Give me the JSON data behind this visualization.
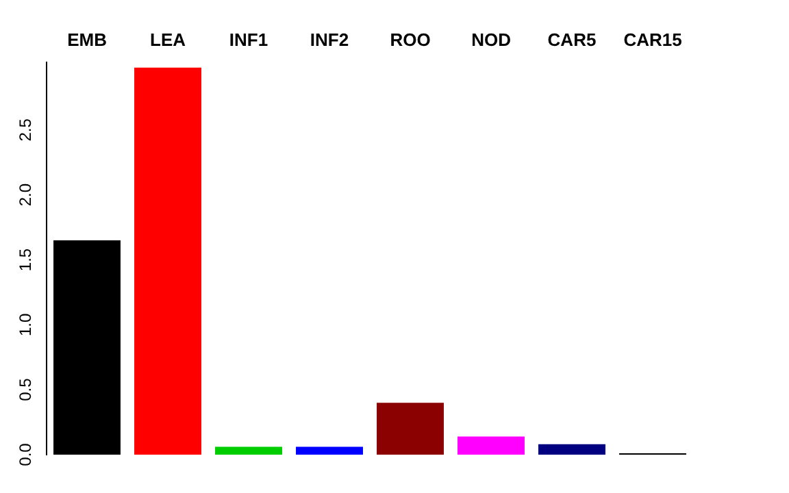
{
  "chart_data": {
    "type": "bar",
    "categories": [
      "EMB",
      "LEA",
      "INF1",
      "INF2",
      "ROO",
      "NOD",
      "CAR5",
      "CAR15"
    ],
    "values": [
      1.65,
      2.98,
      0.06,
      0.06,
      0.4,
      0.14,
      0.08,
      0.01
    ],
    "colors": [
      "#000000",
      "#ff0000",
      "#00cd00",
      "#0000ff",
      "#8b0000",
      "#ff00ff",
      "#000080",
      "#000000"
    ],
    "ylim": [
      0,
      3.02
    ],
    "yticks": [
      {
        "value": 0,
        "label": "0.0"
      },
      {
        "value": 0.5,
        "label": "0.5"
      },
      {
        "value": 1,
        "label": "1.0"
      },
      {
        "value": 1.5,
        "label": "1.5"
      },
      {
        "value": 2,
        "label": "2.0"
      },
      {
        "value": 2.5,
        "label": "2.5"
      }
    ],
    "grid": false,
    "legend": false
  }
}
